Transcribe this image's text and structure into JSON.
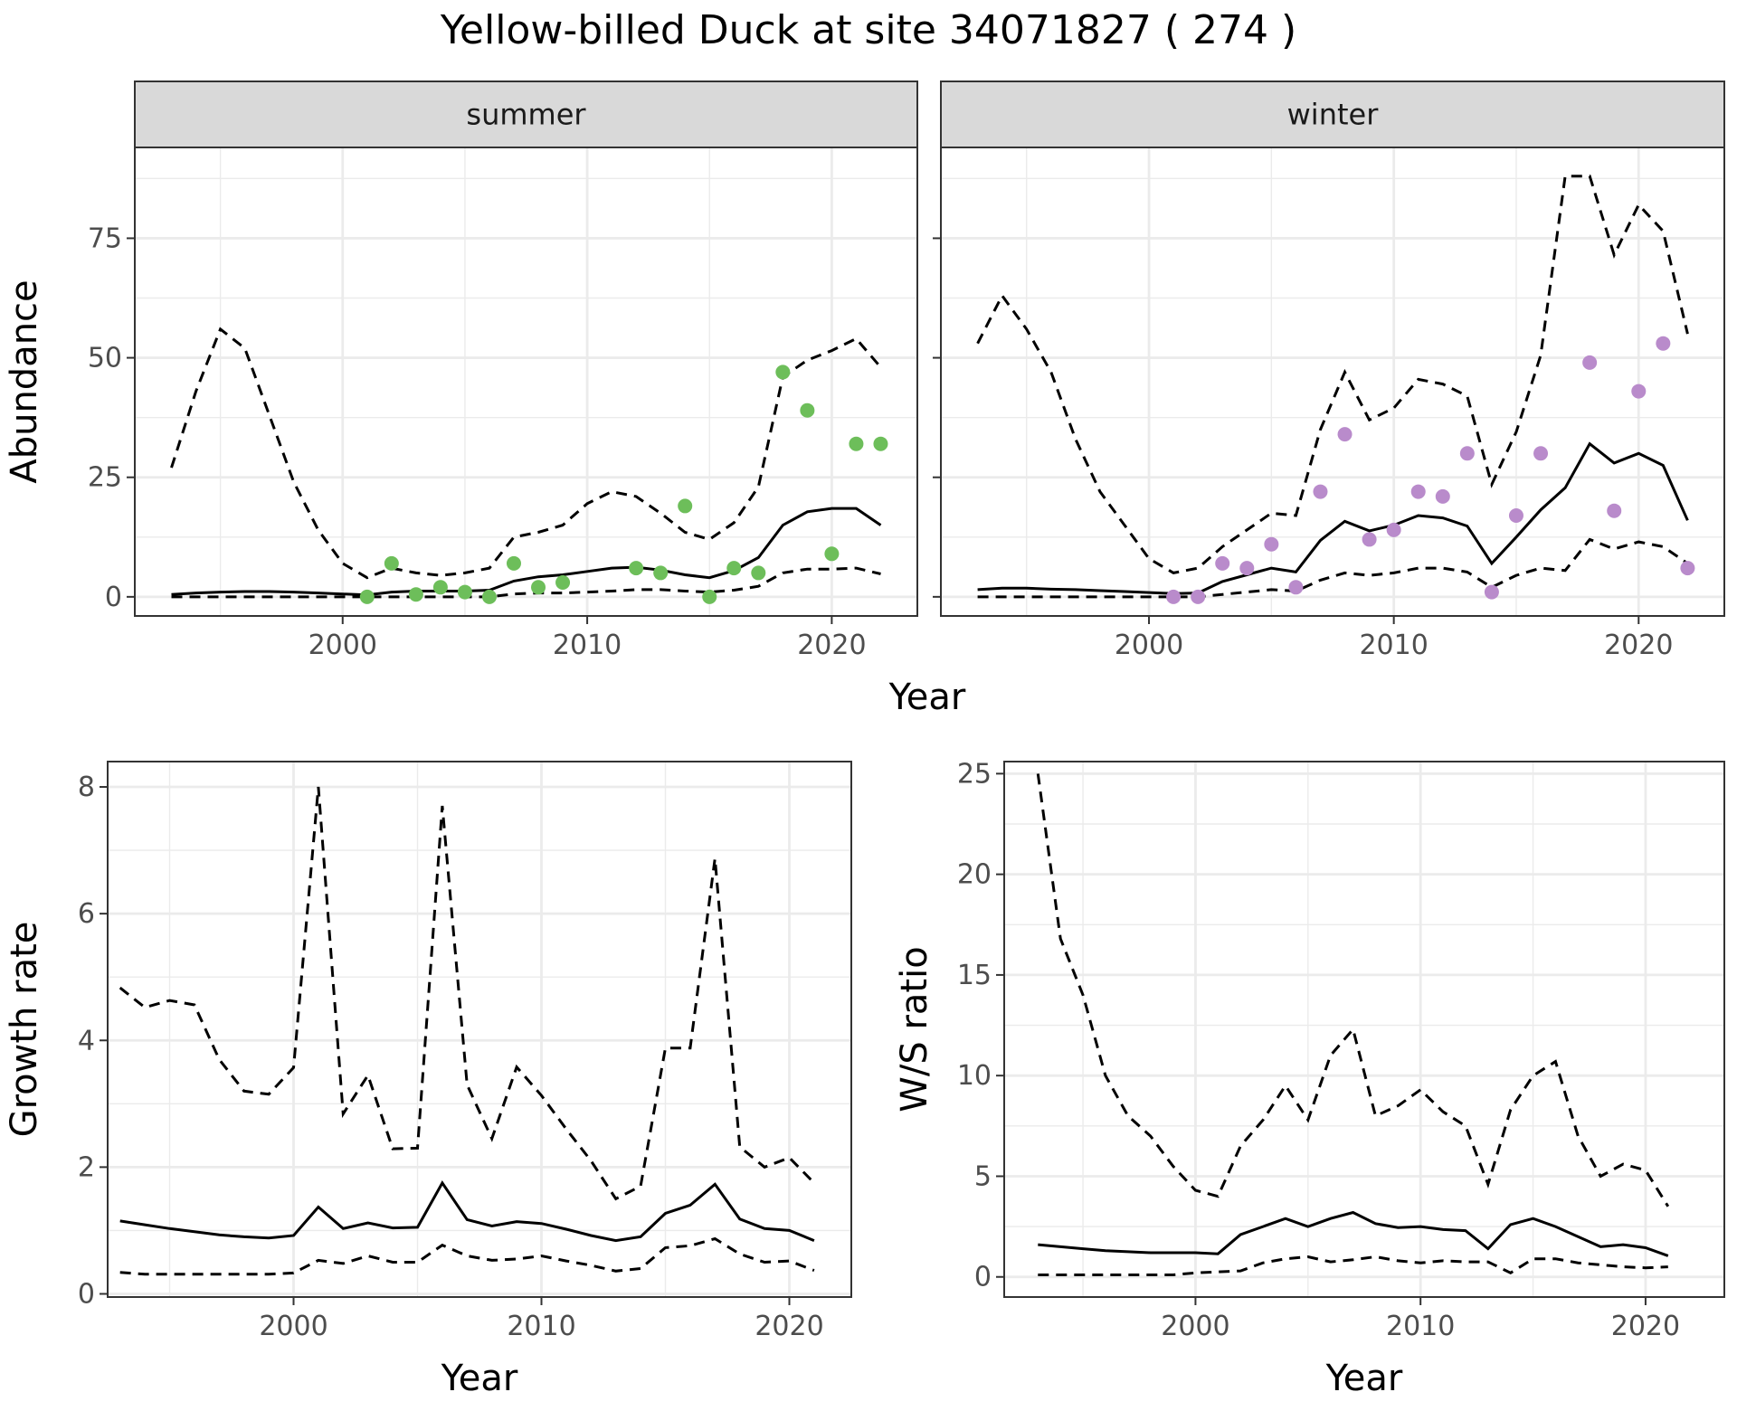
{
  "figure": {
    "title": "Yellow-billed Duck at site 34071827 ( 274 )",
    "shared_xlabel": "Year"
  },
  "colors": {
    "summer_points": "#6DBE5A",
    "winter_points": "#B98BCB",
    "line": "#000000",
    "strip_bg": "#D9D9D9",
    "grid": "#EBEBEB"
  },
  "chart_data": [
    {
      "type": "line",
      "panel": "summer",
      "strip_label": "summer",
      "ylabel": "Abundance",
      "xlabel": "",
      "xlim": [
        1991.5,
        2023.5
      ],
      "ylim": [
        -4,
        94
      ],
      "xticks": [
        2000,
        2010,
        2020
      ],
      "yticks": [
        0,
        25,
        50,
        75
      ],
      "mean": {
        "x": [
          1993,
          1994,
          1995,
          1996,
          1997,
          1998,
          1999,
          2000,
          2001,
          2002,
          2003,
          2004,
          2005,
          2006,
          2007,
          2008,
          2009,
          2010,
          2011,
          2012,
          2013,
          2014,
          2015,
          2016,
          2017,
          2018,
          2019,
          2020,
          2021,
          2022
        ],
        "y": [
          0.5,
          0.8,
          1.0,
          1.1,
          1.1,
          1.0,
          0.8,
          0.6,
          0.4,
          1.0,
          1.2,
          1.2,
          1.2,
          1.4,
          3.3,
          4.2,
          4.6,
          5.3,
          6.0,
          6.2,
          5.6,
          4.6,
          4.0,
          5.5,
          8.2,
          15.0,
          17.8,
          18.5,
          18.5,
          15.0
        ]
      },
      "upper": {
        "x": [
          1993,
          1994,
          1995,
          1996,
          1997,
          1998,
          1999,
          2000,
          2001,
          2002,
          2003,
          2004,
          2005,
          2006,
          2007,
          2008,
          2009,
          2010,
          2011,
          2012,
          2013,
          2014,
          2015,
          2016,
          2017,
          2018,
          2019,
          2020,
          2021,
          2022
        ],
        "y": [
          27,
          43,
          56,
          52,
          38,
          24,
          14,
          7,
          4,
          6,
          5,
          4.5,
          5,
          6,
          12.5,
          13.5,
          15,
          19.5,
          22,
          21,
          17.5,
          13.5,
          12,
          15.5,
          23,
          46,
          49.5,
          51.5,
          54,
          48
        ]
      },
      "lower": {
        "x": [
          1993,
          1994,
          1995,
          1996,
          1997,
          1998,
          1999,
          2000,
          2001,
          2002,
          2003,
          2004,
          2005,
          2006,
          2007,
          2008,
          2009,
          2010,
          2011,
          2012,
          2013,
          2014,
          2015,
          2016,
          2017,
          2018,
          2019,
          2020,
          2021,
          2022
        ],
        "y": [
          0,
          0,
          0,
          0,
          0,
          0,
          0,
          0,
          0,
          0,
          0,
          0,
          0,
          0,
          0.6,
          0.8,
          0.8,
          1,
          1.2,
          1.5,
          1.5,
          1.2,
          1,
          1.4,
          2.2,
          5,
          5.8,
          5.8,
          6,
          4.8
        ]
      },
      "points": {
        "x": [
          2001,
          2002,
          2003,
          2004,
          2005,
          2006,
          2007,
          2008,
          2009,
          2012,
          2013,
          2014,
          2015,
          2016,
          2017,
          2018,
          2019,
          2020,
          2021,
          2022
        ],
        "y": [
          0,
          7,
          0.5,
          2,
          1,
          0,
          7,
          2,
          3,
          6,
          5,
          19,
          0,
          6,
          5,
          47,
          39,
          9,
          32,
          32
        ]
      }
    },
    {
      "type": "line",
      "panel": "winter",
      "strip_label": "winter",
      "ylabel": "",
      "xlabel": "",
      "xlim": [
        1991.5,
        2023.5
      ],
      "ylim": [
        -4,
        94
      ],
      "xticks": [
        2000,
        2010,
        2020
      ],
      "yticks": [
        0,
        25,
        50,
        75
      ],
      "mean": {
        "x": [
          1993,
          1994,
          1995,
          1996,
          1997,
          1998,
          1999,
          2000,
          2001,
          2002,
          2003,
          2004,
          2005,
          2006,
          2007,
          2008,
          2009,
          2010,
          2011,
          2012,
          2013,
          2014,
          2015,
          2016,
          2017,
          2018,
          2019,
          2020,
          2021,
          2022
        ],
        "y": [
          1.5,
          1.8,
          1.8,
          1.6,
          1.5,
          1.3,
          1.1,
          0.9,
          0.7,
          0.8,
          3.2,
          4.6,
          6.0,
          5.2,
          11.8,
          15.8,
          13.8,
          15.0,
          17.0,
          16.5,
          14.8,
          7.0,
          12.5,
          18.2,
          22.8,
          32.0,
          28.0,
          30.0,
          27.5,
          16.0
        ]
      },
      "upper": {
        "x": [
          1993,
          1994,
          1995,
          1996,
          1997,
          1998,
          1999,
          2000,
          2001,
          2002,
          2003,
          2004,
          2005,
          2006,
          2007,
          2008,
          2009,
          2010,
          2011,
          2012,
          2013,
          2014,
          2015,
          2016,
          2017,
          2018,
          2019,
          2020,
          2021,
          2022
        ],
        "y": [
          53,
          63,
          56,
          47,
          33,
          22,
          15,
          8,
          5,
          6,
          10.5,
          14,
          17.5,
          17,
          35,
          47,
          37,
          39.5,
          45.5,
          44.5,
          42,
          23.5,
          34.5,
          50.5,
          88,
          88,
          71.5,
          82,
          76.5,
          55
        ]
      },
      "lower": {
        "x": [
          1993,
          1994,
          1995,
          1996,
          1997,
          1998,
          1999,
          2000,
          2001,
          2002,
          2003,
          2004,
          2005,
          2006,
          2007,
          2008,
          2009,
          2010,
          2011,
          2012,
          2013,
          2014,
          2015,
          2016,
          2017,
          2018,
          2019,
          2020,
          2021,
          2022
        ],
        "y": [
          0,
          0,
          0,
          0,
          0,
          0,
          0,
          0,
          0,
          0,
          0.5,
          1,
          1.5,
          1.2,
          3.5,
          5,
          4.5,
          5,
          6,
          6,
          5.2,
          2,
          4.5,
          6,
          5.5,
          12,
          10,
          11.5,
          10.5,
          7
        ]
      },
      "points": {
        "x": [
          2001,
          2002,
          2003,
          2004,
          2005,
          2006,
          2007,
          2008,
          2009,
          2010,
          2011,
          2012,
          2013,
          2014,
          2015,
          2016,
          2018,
          2019,
          2020,
          2021,
          2022
        ],
        "y": [
          0,
          0,
          7,
          6,
          11,
          2,
          22,
          34,
          12,
          14,
          22,
          21,
          30,
          1,
          17,
          30,
          49,
          18,
          43,
          53,
          6
        ]
      }
    },
    {
      "type": "line",
      "panel": "growth",
      "ylabel": "Growth rate",
      "xlabel": "Year",
      "xlim": [
        1992.5,
        2022.5
      ],
      "ylim": [
        -0.05,
        8.4
      ],
      "xticks": [
        2000,
        2010,
        2020
      ],
      "yticks": [
        0,
        2,
        4,
        6,
        8
      ],
      "mean": {
        "x": [
          1993,
          1994,
          1995,
          1996,
          1997,
          1998,
          1999,
          2000,
          2001,
          2002,
          2003,
          2004,
          2005,
          2006,
          2007,
          2008,
          2009,
          2010,
          2011,
          2012,
          2013,
          2014,
          2015,
          2016,
          2017,
          2018,
          2019,
          2020,
          2021
        ],
        "y": [
          1.15,
          1.09,
          1.03,
          0.98,
          0.93,
          0.9,
          0.88,
          0.92,
          1.37,
          1.03,
          1.12,
          1.04,
          1.05,
          1.75,
          1.17,
          1.07,
          1.14,
          1.11,
          1.02,
          0.92,
          0.84,
          0.9,
          1.27,
          1.4,
          1.73,
          1.18,
          1.03,
          1.0,
          0.84
        ]
      },
      "upper": {
        "x": [
          1993,
          1994,
          1995,
          1996,
          1997,
          1998,
          1999,
          2000,
          2001,
          2002,
          2003,
          2004,
          2005,
          2006,
          2007,
          2008,
          2009,
          2010,
          2011,
          2012,
          2013,
          2014,
          2015,
          2016,
          2017,
          2018,
          2019,
          2020,
          2021
        ],
        "y": [
          4.83,
          4.52,
          4.63,
          4.56,
          3.7,
          3.2,
          3.15,
          3.57,
          8.0,
          2.84,
          3.45,
          2.29,
          2.3,
          7.7,
          3.3,
          2.45,
          3.58,
          3.13,
          2.6,
          2.1,
          1.5,
          1.7,
          3.88,
          3.88,
          6.87,
          2.32,
          2.0,
          2.15,
          1.75
        ]
      },
      "lower": {
        "x": [
          1993,
          1994,
          1995,
          1996,
          1997,
          1998,
          1999,
          2000,
          2001,
          2002,
          2003,
          2004,
          2005,
          2006,
          2007,
          2008,
          2009,
          2010,
          2011,
          2012,
          2013,
          2014,
          2015,
          2016,
          2017,
          2018,
          2019,
          2020,
          2021
        ],
        "y": [
          0.34,
          0.31,
          0.31,
          0.31,
          0.31,
          0.31,
          0.31,
          0.33,
          0.53,
          0.48,
          0.6,
          0.5,
          0.5,
          0.77,
          0.6,
          0.53,
          0.55,
          0.6,
          0.52,
          0.45,
          0.36,
          0.4,
          0.73,
          0.76,
          0.87,
          0.63,
          0.5,
          0.52,
          0.37
        ]
      }
    },
    {
      "type": "line",
      "panel": "ws_ratio",
      "ylabel": "W/S ratio",
      "xlabel": "Year",
      "xlim": [
        1991.5,
        2023.5
      ],
      "ylim": [
        -1,
        25.6
      ],
      "xticks": [
        2000,
        2010,
        2020
      ],
      "yticks": [
        0,
        5,
        10,
        15,
        20,
        25
      ],
      "mean": {
        "x": [
          1993,
          1994,
          1995,
          1996,
          1997,
          1998,
          1999,
          2000,
          2001,
          2002,
          2003,
          2004,
          2005,
          2006,
          2007,
          2008,
          2009,
          2010,
          2011,
          2012,
          2013,
          2014,
          2015,
          2016,
          2017,
          2018,
          2019,
          2020,
          2021
        ],
        "y": [
          1.6,
          1.5,
          1.4,
          1.3,
          1.25,
          1.2,
          1.2,
          1.2,
          1.15,
          2.1,
          2.5,
          2.9,
          2.5,
          2.9,
          3.2,
          2.65,
          2.45,
          2.5,
          2.35,
          2.3,
          1.4,
          2.6,
          2.9,
          2.5,
          2.0,
          1.5,
          1.6,
          1.45,
          1.05
        ]
      },
      "upper": {
        "x": [
          1993,
          1994,
          1995,
          1996,
          1997,
          1998,
          1999,
          2000,
          2001,
          2002,
          2003,
          2004,
          2005,
          2006,
          2007,
          2008,
          2009,
          2010,
          2011,
          2012,
          2013,
          2014,
          2015,
          2016,
          2017,
          2018,
          2019,
          2020,
          2021
        ],
        "y": [
          25,
          16.8,
          14,
          10,
          8,
          7,
          5.5,
          4.3,
          4.0,
          6.5,
          7.8,
          9.5,
          7.8,
          11.0,
          12.3,
          8.0,
          8.5,
          9.3,
          8.2,
          7.5,
          4.6,
          8.3,
          10.0,
          10.7,
          7.0,
          5.0,
          5.6,
          5.3,
          3.5
        ]
      },
      "lower": {
        "x": [
          1993,
          1994,
          1995,
          1996,
          1997,
          1998,
          1999,
          2000,
          2001,
          2002,
          2003,
          2004,
          2005,
          2006,
          2007,
          2008,
          2009,
          2010,
          2011,
          2012,
          2013,
          2014,
          2015,
          2016,
          2017,
          2018,
          2019,
          2020,
          2021
        ],
        "y": [
          0.1,
          0.1,
          0.1,
          0.1,
          0.1,
          0.1,
          0.1,
          0.2,
          0.25,
          0.3,
          0.7,
          0.9,
          1.0,
          0.75,
          0.85,
          1.0,
          0.8,
          0.7,
          0.8,
          0.75,
          0.75,
          0.2,
          0.9,
          0.9,
          0.7,
          0.6,
          0.5,
          0.45,
          0.5
        ]
      }
    }
  ]
}
